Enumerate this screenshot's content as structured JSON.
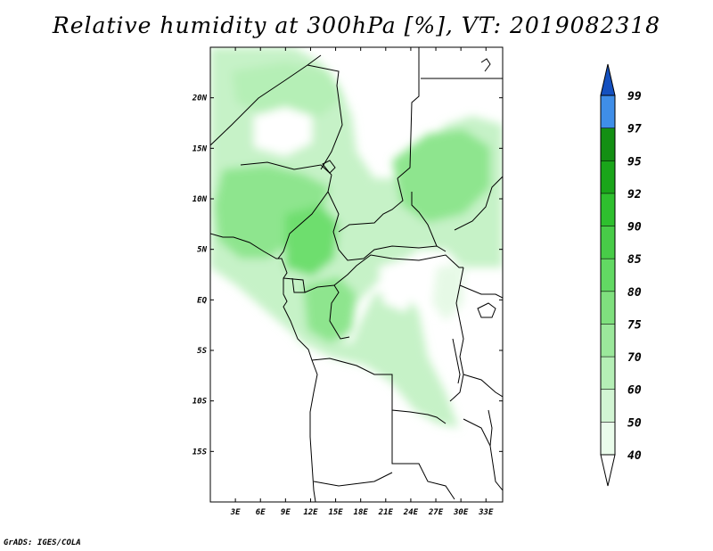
{
  "title": "Relative humidity at 300hPa [%], VT: 2019082318",
  "footer": "GrADS: IGES/COLA",
  "map": {
    "variable": "Relative humidity",
    "level": "300hPa",
    "units": "%",
    "valid_time": "2019082318",
    "lon_range": [
      0,
      35
    ],
    "lat_range": [
      -20,
      25
    ],
    "lon_ticks": [
      "3E",
      "6E",
      "9E",
      "12E",
      "15E",
      "18E",
      "21E",
      "24E",
      "27E",
      "30E",
      "33E"
    ],
    "lon_tick_values": [
      3,
      6,
      9,
      12,
      15,
      18,
      21,
      24,
      27,
      30,
      33
    ],
    "lat_ticks": [
      "20N",
      "15N",
      "10N",
      "5N",
      "EQ",
      "5S",
      "10S",
      "15S"
    ],
    "lat_tick_values": [
      20,
      15,
      10,
      5,
      0,
      -5,
      -10,
      -15
    ]
  },
  "colorbar": {
    "labels": [
      "40",
      "50",
      "60",
      "70",
      "75",
      "80",
      "85",
      "90",
      "92",
      "95",
      "97",
      "99"
    ],
    "colors": [
      "#eafceb",
      "#d2f5d3",
      "#b5efb6",
      "#9be89b",
      "#7fe07e",
      "#62d963",
      "#48cc48",
      "#2ebf2e",
      "#1aa51a",
      "#138f13",
      "#3f8ee8",
      "#2468d6",
      "#1450bf"
    ]
  }
}
